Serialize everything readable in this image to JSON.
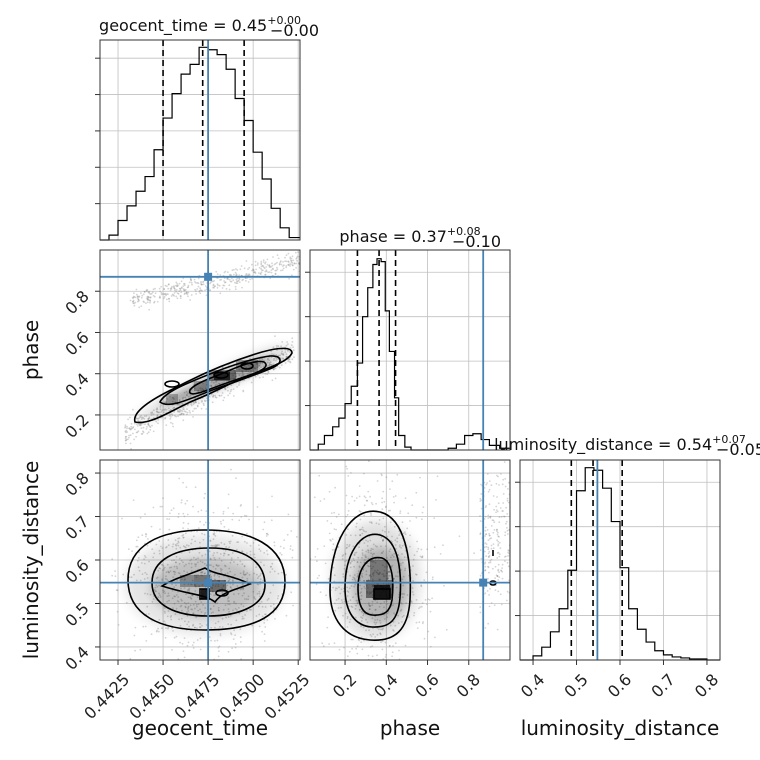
{
  "chart_data": {
    "type": "corner",
    "parameters": [
      "geocent_time",
      "phase",
      "luminosity_distance"
    ],
    "colors": {
      "truth": "#4682b4",
      "hist": "#000000",
      "grid": "#c0c0c0",
      "points": "#888888"
    },
    "ranges": {
      "geocent_time": [
        0.4415,
        0.4526
      ],
      "phase": [
        0.03,
        1.0
      ],
      "luminosity_distance": [
        0.37,
        0.83
      ]
    },
    "ticks": {
      "geocent_time": [
        "0.4425",
        "0.4450",
        "0.4475",
        "0.4500",
        "0.4525"
      ],
      "phase_x": [
        "0.2",
        "0.4",
        "0.6",
        "0.8"
      ],
      "phase_y": [
        "0.2",
        "0.4",
        "0.6",
        "0.8"
      ],
      "luminosity_distance_x": [
        "0.4",
        "0.5",
        "0.6",
        "0.7",
        "0.8"
      ],
      "luminosity_distance_y": [
        "0.4",
        "0.5",
        "0.6",
        "0.7",
        "0.8"
      ]
    },
    "truths": {
      "geocent_time": 0.4475,
      "phase": 0.87,
      "luminosity_distance": 0.548
    },
    "titles": {
      "geocent_time": {
        "label": "geocent_time = 0.45",
        "sup": "+0.00",
        "sub": "−0.00"
      },
      "phase": {
        "label": "phase = 0.37",
        "sup": "+0.08",
        "sub": "−0.10"
      },
      "luminosity_distance": {
        "label": "luminosity_distance = 0.54",
        "sup": "+0.07",
        "sub": "−0.05"
      }
    },
    "axis_labels": {
      "x": [
        "geocent_time",
        "phase",
        "luminosity_distance"
      ],
      "y": [
        "phase",
        "luminosity_distance"
      ]
    },
    "quantiles": {
      "geocent_time": [
        0.445,
        0.4472,
        0.4495
      ],
      "phase": [
        0.26,
        0.365,
        0.445
      ],
      "luminosity_distance": [
        0.488,
        0.538,
        0.605
      ]
    },
    "histograms": {
      "geocent_time": {
        "edges": [
          0.4415,
          0.442,
          0.4425,
          0.443,
          0.4435,
          0.444,
          0.4445,
          0.445,
          0.4455,
          0.446,
          0.4465,
          0.447,
          0.4475,
          0.448,
          0.4485,
          0.449,
          0.4495,
          0.45,
          0.4505,
          0.451,
          0.4515,
          0.452,
          0.4526
        ],
        "counts": [
          0,
          10,
          40,
          70,
          100,
          130,
          185,
          250,
          300,
          340,
          360,
          395,
          390,
          380,
          350,
          290,
          245,
          180,
          125,
          65,
          25,
          5
        ],
        "ymax": 410
      },
      "phase": {
        "edges": [
          0.03,
          0.07,
          0.1,
          0.14,
          0.17,
          0.2,
          0.23,
          0.26,
          0.285,
          0.31,
          0.335,
          0.355,
          0.375,
          0.395,
          0.415,
          0.44,
          0.46,
          0.49,
          0.52,
          0.55,
          0.58,
          0.62,
          0.66,
          0.7,
          0.74,
          0.78,
          0.82,
          0.86,
          0.9,
          0.95,
          1.0
        ],
        "counts": [
          0,
          10,
          25,
          40,
          55,
          80,
          110,
          150,
          230,
          280,
          320,
          330,
          325,
          240,
          170,
          90,
          25,
          5,
          0,
          0,
          0,
          0,
          0,
          3,
          10,
          25,
          28,
          18,
          8,
          3
        ],
        "ymax": 345
      },
      "luminosity_distance": {
        "edges": [
          0.37,
          0.4,
          0.42,
          0.44,
          0.46,
          0.48,
          0.5,
          0.52,
          0.54,
          0.56,
          0.58,
          0.6,
          0.62,
          0.64,
          0.66,
          0.68,
          0.7,
          0.72,
          0.74,
          0.76,
          0.8,
          0.83
        ],
        "counts": [
          0,
          8,
          25,
          55,
          100,
          175,
          330,
          375,
          370,
          335,
          270,
          180,
          100,
          60,
          35,
          18,
          10,
          6,
          4,
          2,
          0
        ],
        "ymax": 390
      }
    }
  }
}
